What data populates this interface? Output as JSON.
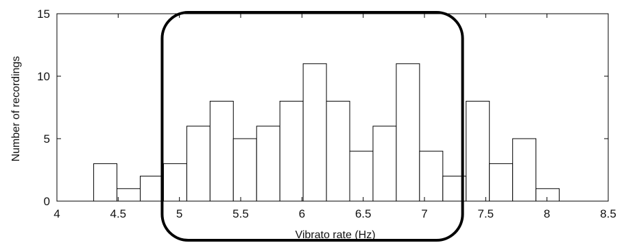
{
  "chart_data": {
    "type": "bar",
    "title": "",
    "xlabel": "Vibrato rate (Hz)",
    "ylabel": "Number of recordings",
    "xlim": [
      4,
      8.5
    ],
    "ylim": [
      0,
      15
    ],
    "xticks": [
      4,
      4.5,
      5,
      5.5,
      6,
      6.5,
      7,
      7.5,
      8,
      8.5
    ],
    "xtick_labels": [
      "4",
      "4.5",
      "5",
      "5.5",
      "6",
      "6.5",
      "7",
      "7.5",
      "8",
      "8.5"
    ],
    "yticks": [
      0,
      5,
      10,
      15
    ],
    "ytick_labels": [
      "0",
      "5",
      "10",
      "15"
    ],
    "bin_width": 0.19,
    "bins": [
      {
        "start": 4.3,
        "count": 3
      },
      {
        "start": 4.49,
        "count": 1
      },
      {
        "start": 4.68,
        "count": 2
      },
      {
        "start": 4.87,
        "count": 3
      },
      {
        "start": 5.06,
        "count": 6
      },
      {
        "start": 5.25,
        "count": 8
      },
      {
        "start": 5.44,
        "count": 5
      },
      {
        "start": 5.63,
        "count": 6
      },
      {
        "start": 5.82,
        "count": 8
      },
      {
        "start": 6.01,
        "count": 11
      },
      {
        "start": 6.2,
        "count": 8
      },
      {
        "start": 6.39,
        "count": 4
      },
      {
        "start": 6.58,
        "count": 6
      },
      {
        "start": 6.77,
        "count": 11
      },
      {
        "start": 6.96,
        "count": 4
      },
      {
        "start": 7.15,
        "count": 2
      },
      {
        "start": 7.34,
        "count": 8
      },
      {
        "start": 7.53,
        "count": 3
      },
      {
        "start": 7.72,
        "count": 5
      },
      {
        "start": 7.91,
        "count": 1
      }
    ],
    "grid": false,
    "annotations": [
      {
        "type": "rounded-rectangle",
        "x_range": [
          4.87,
          7.3
        ]
      }
    ]
  }
}
